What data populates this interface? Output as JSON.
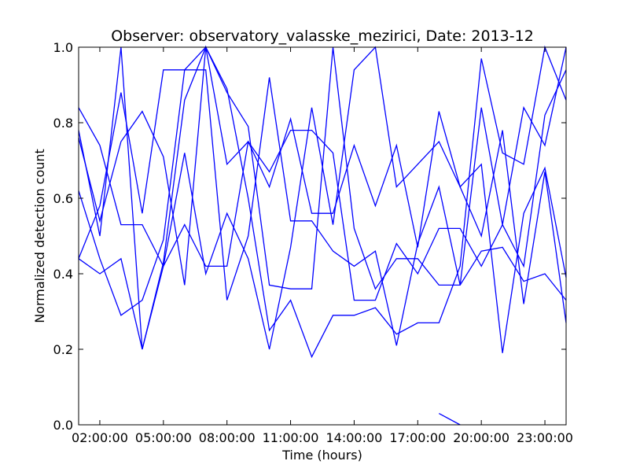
{
  "chart_data": {
    "type": "line",
    "title": "Observer: observatory_valasske_mezirici, Date: 2013-12",
    "xlabel": "Time (hours)",
    "ylabel": "Normalized detection count",
    "xlim": [
      1,
      24
    ],
    "ylim": [
      0,
      1
    ],
    "x_ticks": [
      2,
      5,
      8,
      11,
      14,
      17,
      20,
      23
    ],
    "x_tick_labels": [
      "02:00:00",
      "05:00:00",
      "08:00:00",
      "11:00:00",
      "14:00:00",
      "17:00:00",
      "20:00:00",
      "23:00:00"
    ],
    "y_ticks": [
      0,
      0.2,
      0.4,
      0.6,
      0.8,
      1.0
    ],
    "y_tick_labels": [
      "0.0",
      "0.2",
      "0.4",
      "0.6",
      "0.8",
      "1.0"
    ],
    "grid": false,
    "line_color": "#0000ff",
    "series": [
      {
        "x": [
          1,
          2,
          3,
          4,
          5,
          6,
          7,
          8,
          9,
          10,
          11,
          12,
          13,
          14,
          15,
          16,
          17,
          18,
          19,
          20,
          21,
          22,
          23,
          24
        ],
        "values": [
          0.84,
          0.74,
          0.53,
          0.53,
          0.42,
          0.53,
          0.42,
          0.42,
          0.75,
          0.67,
          0.78,
          0.78,
          0.72,
          0.33,
          0.33,
          0.48,
          0.4,
          0.52,
          0.52,
          0.42,
          0.53,
          0.42,
          0.82,
          0.94
        ]
      },
      {
        "x": [
          1,
          2,
          3,
          4,
          5,
          6,
          7,
          8,
          9,
          10,
          11,
          12,
          13,
          14,
          15,
          16,
          17,
          18,
          19,
          20,
          21,
          22,
          23,
          24
        ],
        "values": [
          0.62,
          0.44,
          0.29,
          0.33,
          0.49,
          0.94,
          0.94,
          0.33,
          0.5,
          0.92,
          0.54,
          0.54,
          0.46,
          0.42,
          0.46,
          0.21,
          0.48,
          0.63,
          0.37,
          0.84,
          0.53,
          0.84,
          0.74,
          1.0
        ]
      },
      {
        "x": [
          1,
          2,
          3,
          4,
          5,
          6,
          7,
          8,
          9,
          10,
          11,
          12,
          13,
          14,
          15,
          16,
          17,
          18,
          19,
          20,
          21,
          22,
          23,
          24
        ],
        "values": [
          0.44,
          0.58,
          0.88,
          0.56,
          0.94,
          0.94,
          1.0,
          0.69,
          0.75,
          0.63,
          0.81,
          0.56,
          0.56,
          0.74,
          0.58,
          0.74,
          0.47,
          0.83,
          0.63,
          0.69,
          0.19,
          0.56,
          0.68,
          0.39
        ]
      },
      {
        "x": [
          1,
          2,
          3,
          4,
          5,
          6,
          7,
          8,
          9,
          10,
          11,
          12,
          13,
          14,
          15,
          16,
          17,
          18,
          19,
          20,
          21,
          22,
          23,
          24
        ],
        "values": [
          0.78,
          0.5,
          1.0,
          0.2,
          0.42,
          0.72,
          0.4,
          0.56,
          0.44,
          0.2,
          0.47,
          0.84,
          0.53,
          0.94,
          1.0,
          0.63,
          0.69,
          0.75,
          0.63,
          0.5,
          0.78,
          0.32,
          0.67,
          0.27
        ]
      },
      {
        "x": [
          1,
          2,
          3,
          4,
          5,
          6,
          7,
          8,
          9,
          10,
          11,
          12,
          13,
          14,
          15,
          16,
          17,
          18,
          19,
          20,
          21,
          22,
          23,
          24
        ],
        "values": [
          0.44,
          0.4,
          0.44,
          0.2,
          0.43,
          0.86,
          1.0,
          0.89,
          0.6,
          0.25,
          0.33,
          0.18,
          0.29,
          0.29,
          0.31,
          0.24,
          0.27,
          0.27,
          0.42,
          0.97,
          0.72,
          0.69,
          1.0,
          0.86
        ]
      },
      {
        "x": [
          1,
          2,
          3,
          4,
          5,
          6,
          7,
          8,
          9,
          10,
          11,
          12,
          13,
          14,
          15,
          16,
          17,
          18,
          19,
          20,
          21,
          22,
          23,
          24
        ],
        "values": [
          0.76,
          0.54,
          0.75,
          0.83,
          0.71,
          0.37,
          1.0,
          0.88,
          0.79,
          0.37,
          0.36,
          0.36,
          1.0,
          0.52,
          0.36,
          0.44,
          0.44,
          0.37,
          0.37,
          0.46,
          0.47,
          0.38,
          0.4,
          0.33
        ]
      },
      {
        "x": [
          18,
          19
        ],
        "values": [
          0.03,
          0.0
        ]
      }
    ]
  }
}
